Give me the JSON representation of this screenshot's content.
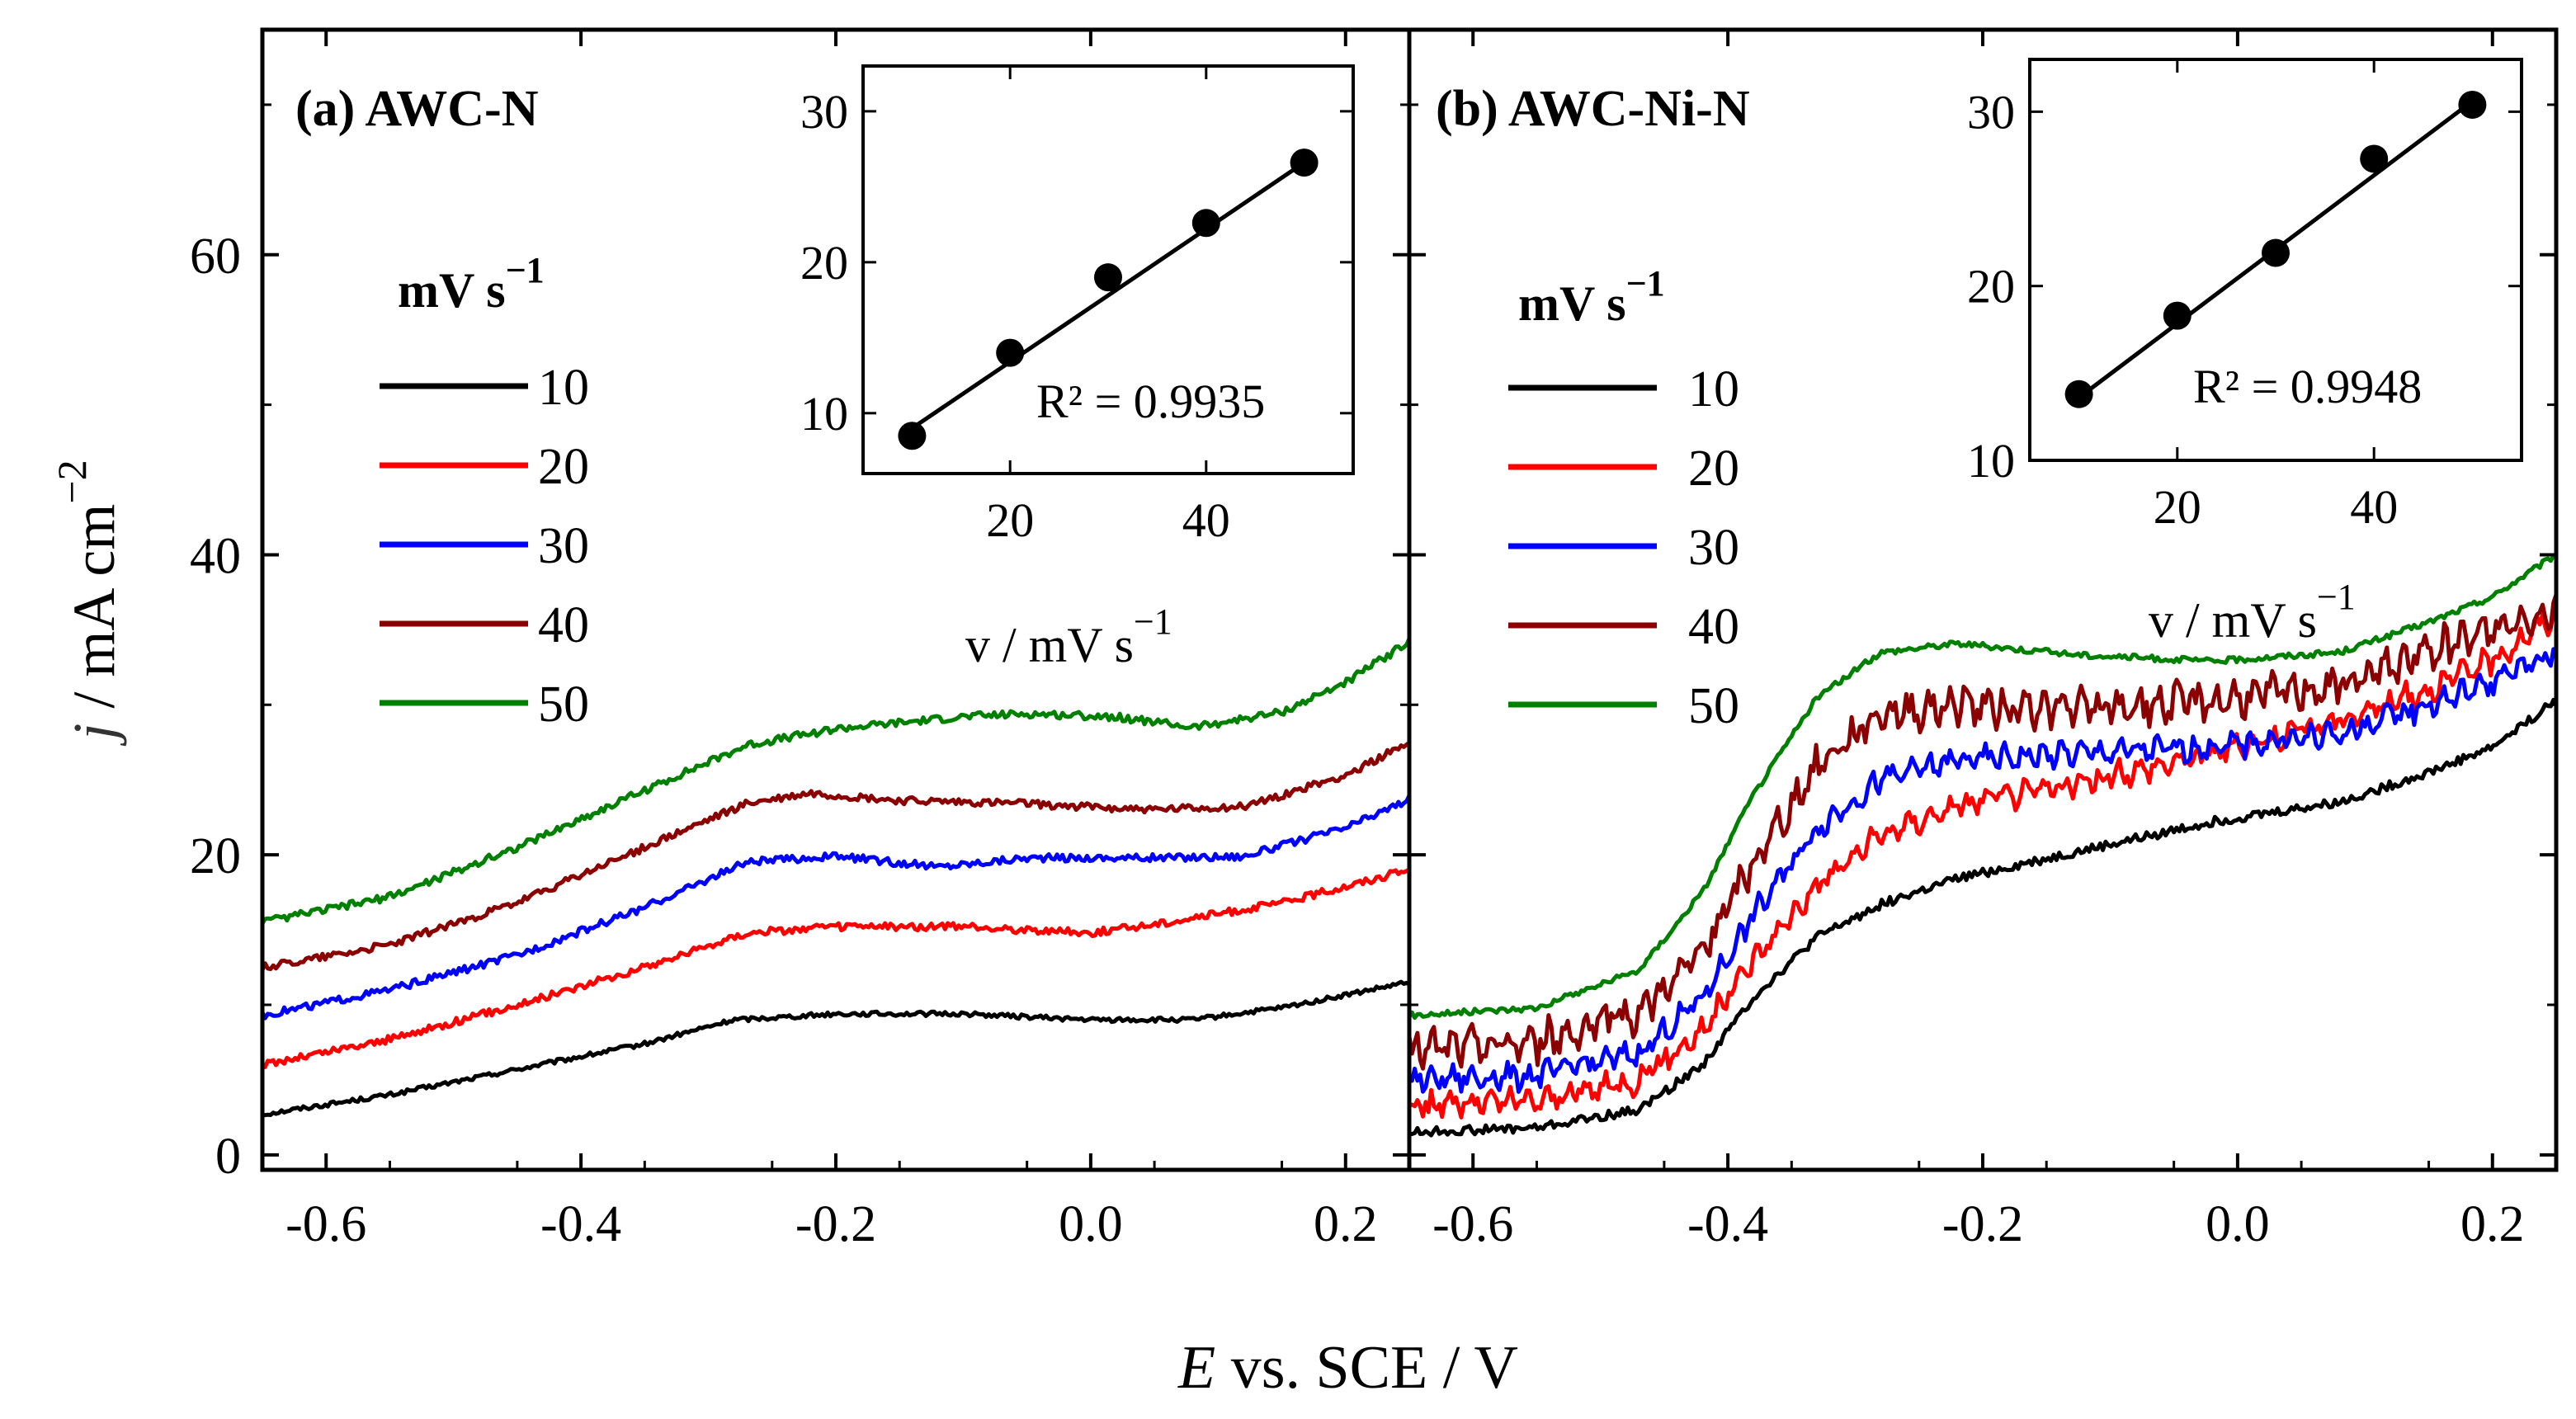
{
  "chart_data": {
    "type": "line",
    "figure": {
      "xlabel": {
        "italic": "E",
        "rest": " vs. SCE / V"
      },
      "ylabel": {
        "italic": "j",
        "rest": " / mA cm",
        "sup": "−2"
      }
    },
    "panels": [
      {
        "id": "a",
        "title": "(a) AWC-N",
        "xlim": [
          -0.65,
          0.25
        ],
        "ylim": [
          -1,
          75
        ],
        "xticks": [
          -0.6,
          -0.4,
          -0.2,
          0.0,
          0.2
        ],
        "xtick_labels": [
          "-0.6",
          "-0.4",
          "-0.2",
          "0.0",
          "0.2"
        ],
        "yticks": [
          0,
          20,
          40,
          60
        ],
        "ytick_labels": [
          "0",
          "20",
          "40",
          "60"
        ],
        "legend": {
          "title": "mV s",
          "title_sup": "−1",
          "placement": "left"
        },
        "series": [
          {
            "name": "10",
            "color": "#000000",
            "noise": 0.15,
            "points": [
              [
                -0.65,
                2.7
              ],
              [
                -0.55,
                4.0
              ],
              [
                -0.45,
                5.7
              ],
              [
                -0.35,
                7.4
              ],
              [
                -0.28,
                9.0
              ],
              [
                -0.2,
                9.4
              ],
              [
                -0.1,
                9.4
              ],
              [
                0.0,
                9.0
              ],
              [
                0.08,
                9.0
              ],
              [
                0.15,
                9.8
              ],
              [
                0.25,
                11.5
              ]
            ]
          },
          {
            "name": "20",
            "color": "#ff0000",
            "noise": 0.25,
            "points": [
              [
                -0.65,
                6.0
              ],
              [
                -0.55,
                7.7
              ],
              [
                -0.45,
                10.0
              ],
              [
                -0.35,
                12.5
              ],
              [
                -0.27,
                14.8
              ],
              [
                -0.2,
                15.2
              ],
              [
                -0.1,
                15.2
              ],
              [
                0.0,
                14.8
              ],
              [
                0.06,
                15.5
              ],
              [
                0.15,
                16.8
              ],
              [
                0.25,
                19.0
              ]
            ]
          },
          {
            "name": "30",
            "color": "#0000ff",
            "noise": 0.25,
            "points": [
              [
                -0.65,
                9.3
              ],
              [
                -0.55,
                11.0
              ],
              [
                -0.45,
                13.3
              ],
              [
                -0.35,
                16.5
              ],
              [
                -0.27,
                19.5
              ],
              [
                -0.2,
                19.9
              ],
              [
                -0.12,
                19.2
              ],
              [
                -0.05,
                19.8
              ],
              [
                0.05,
                19.8
              ],
              [
                0.12,
                19.9
              ],
              [
                0.2,
                21.8
              ],
              [
                0.25,
                23.7
              ]
            ]
          },
          {
            "name": "40",
            "color": "#8b0000",
            "noise": 0.25,
            "points": [
              [
                -0.65,
                12.5
              ],
              [
                -0.55,
                14.0
              ],
              [
                -0.45,
                16.8
              ],
              [
                -0.35,
                20.5
              ],
              [
                -0.27,
                23.4
              ],
              [
                -0.22,
                24.1
              ],
              [
                -0.15,
                23.6
              ],
              [
                -0.05,
                23.4
              ],
              [
                0.05,
                23.0
              ],
              [
                0.12,
                23.2
              ],
              [
                0.2,
                25.3
              ],
              [
                0.25,
                27.5
              ]
            ]
          },
          {
            "name": "50",
            "color": "#008000",
            "noise": 0.25,
            "points": [
              [
                -0.65,
                15.5
              ],
              [
                -0.55,
                17.2
              ],
              [
                -0.45,
                20.5
              ],
              [
                -0.35,
                24.3
              ],
              [
                -0.27,
                27.3
              ],
              [
                -0.2,
                28.4
              ],
              [
                -0.1,
                29.2
              ],
              [
                -0.05,
                29.4
              ],
              [
                0.02,
                29.2
              ],
              [
                0.08,
                28.5
              ],
              [
                0.15,
                29.5
              ],
              [
                0.2,
                31.5
              ],
              [
                0.25,
                34.2
              ]
            ]
          }
        ],
        "inset": {
          "xlim": [
            5,
            55
          ],
          "ylim": [
            6,
            33
          ],
          "xticks": [
            20,
            40
          ],
          "xtick_labels": [
            "20",
            "40"
          ],
          "yticks": [
            10,
            20,
            30
          ],
          "ytick_labels": [
            "10",
            "20",
            "30"
          ],
          "xlabel": {
            "main": "v / mV s",
            "sup": "−1"
          },
          "r2": "R² = 0.9935",
          "points": [
            [
              10,
              8.5
            ],
            [
              20,
              14.0
            ],
            [
              30,
              19.0
            ],
            [
              40,
              22.6
            ],
            [
              50,
              26.6
            ]
          ],
          "fit": [
            [
              10,
              9.0
            ],
            [
              50,
              26.6
            ]
          ]
        }
      },
      {
        "id": "b",
        "title": "(b) AWC-Ni-N",
        "xlim": [
          -0.65,
          0.25
        ],
        "ylim": [
          -1,
          75
        ],
        "xticks": [
          -0.6,
          -0.4,
          -0.2,
          0.0,
          0.2
        ],
        "xtick_labels": [
          "-0.6",
          "-0.4",
          "-0.2",
          "0.0",
          "0.2"
        ],
        "yticks": [
          0,
          20,
          40,
          60
        ],
        "ytick_labels": [],
        "legend": {
          "title": "mV s",
          "title_sup": "−1",
          "placement": "left"
        },
        "series": [
          {
            "name": "10",
            "color": "#000000",
            "noise": 0.3,
            "points": [
              [
                -0.65,
                1.5
              ],
              [
                -0.55,
                1.8
              ],
              [
                -0.47,
                3.0
              ],
              [
                -0.42,
                6.0
              ],
              [
                -0.38,
                10.5
              ],
              [
                -0.33,
                14.5
              ],
              [
                -0.28,
                16.7
              ],
              [
                -0.22,
                18.4
              ],
              [
                -0.12,
                20.3
              ],
              [
                -0.02,
                22.2
              ],
              [
                0.08,
                23.5
              ],
              [
                0.15,
                25.5
              ],
              [
                0.2,
                27.2
              ],
              [
                0.25,
                30.3
              ]
            ]
          },
          {
            "name": "20",
            "color": "#ff0000",
            "noise": 0.6,
            "points": [
              [
                -0.65,
                3.3
              ],
              [
                -0.55,
                3.6
              ],
              [
                -0.47,
                5.0
              ],
              [
                -0.42,
                8.3
              ],
              [
                -0.38,
                13.0
              ],
              [
                -0.33,
                18.0
              ],
              [
                -0.28,
                21.3
              ],
              [
                -0.22,
                23.3
              ],
              [
                -0.12,
                24.8
              ],
              [
                -0.02,
                26.8
              ],
              [
                0.08,
                29.0
              ],
              [
                0.15,
                31.0
              ],
              [
                0.2,
                33.0
              ],
              [
                0.25,
                36.0
              ]
            ]
          },
          {
            "name": "30",
            "color": "#0000ff",
            "noise": 0.6,
            "points": [
              [
                -0.65,
                5.0
              ],
              [
                -0.55,
                5.3
              ],
              [
                -0.47,
                6.8
              ],
              [
                -0.42,
                10.5
              ],
              [
                -0.38,
                16.0
              ],
              [
                -0.33,
                21.8
              ],
              [
                -0.28,
                25.0
              ],
              [
                -0.22,
                26.3
              ],
              [
                -0.12,
                26.8
              ],
              [
                -0.02,
                27.2
              ],
              [
                0.08,
                28.0
              ],
              [
                0.15,
                30.0
              ],
              [
                0.2,
                31.5
              ],
              [
                0.25,
                33.5
              ]
            ]
          },
          {
            "name": "40",
            "color": "#8b0000",
            "noise": 0.9,
            "points": [
              [
                -0.65,
                7.0
              ],
              [
                -0.55,
                7.5
              ],
              [
                -0.47,
                9.5
              ],
              [
                -0.42,
                13.5
              ],
              [
                -0.38,
                19.5
              ],
              [
                -0.33,
                26.0
              ],
              [
                -0.28,
                29.5
              ],
              [
                -0.22,
                30.0
              ],
              [
                -0.12,
                29.7
              ],
              [
                -0.02,
                30.3
              ],
              [
                0.08,
                31.3
              ],
              [
                0.15,
                33.5
              ],
              [
                0.2,
                35.0
              ],
              [
                0.25,
                36.5
              ]
            ]
          },
          {
            "name": "50",
            "color": "#008000",
            "noise": 0.2,
            "points": [
              [
                -0.65,
                9.3
              ],
              [
                -0.55,
                9.8
              ],
              [
                -0.47,
                12.3
              ],
              [
                -0.42,
                17.5
              ],
              [
                -0.38,
                24.0
              ],
              [
                -0.33,
                30.5
              ],
              [
                -0.28,
                33.5
              ],
              [
                -0.22,
                34.1
              ],
              [
                -0.12,
                33.3
              ],
              [
                -0.02,
                32.9
              ],
              [
                0.08,
                33.5
              ],
              [
                0.15,
                35.5
              ],
              [
                0.2,
                37.2
              ],
              [
                0.25,
                40.0
              ]
            ]
          }
        ],
        "inset": {
          "xlim": [
            5,
            55
          ],
          "ylim": [
            10,
            33
          ],
          "xticks": [
            20,
            40
          ],
          "xtick_labels": [
            "20",
            "40"
          ],
          "yticks": [
            10,
            20,
            30
          ],
          "ytick_labels": [
            "10",
            "20",
            "30"
          ],
          "xlabel": {
            "main": "v / mV s",
            "sup": "−1"
          },
          "r2": "R² = 0.9948",
          "points": [
            [
              10,
              13.8
            ],
            [
              20,
              18.3
            ],
            [
              30,
              21.9
            ],
            [
              40,
              27.3
            ],
            [
              50,
              30.4
            ]
          ],
          "fit": [
            [
              10,
              13.6
            ],
            [
              50,
              30.6
            ]
          ]
        }
      }
    ]
  }
}
